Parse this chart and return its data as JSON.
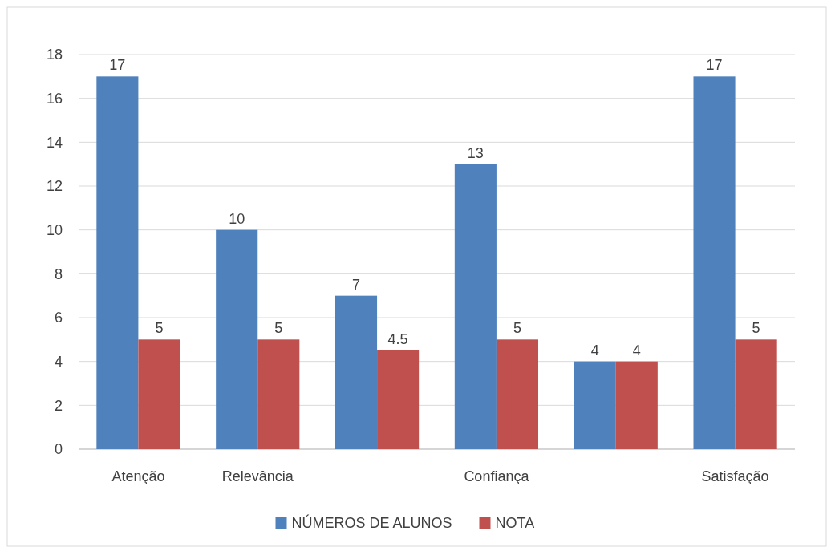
{
  "chart_data": {
    "type": "bar",
    "categories": [
      "Atenção",
      "Relevância",
      null,
      "Confiança",
      null,
      "Satisfação"
    ],
    "series": [
      {
        "name": "NÚMEROS DE ALUNOS",
        "color": "#4f81bd",
        "values": [
          17,
          10,
          7,
          13,
          4,
          17
        ]
      },
      {
        "name": "NOTA",
        "color": "#c0504d",
        "values": [
          5,
          5,
          4.5,
          5,
          4,
          5
        ]
      }
    ],
    "ylim": [
      0,
      18
    ],
    "yticks": [
      0,
      2,
      4,
      6,
      8,
      10,
      12,
      14,
      16,
      18
    ],
    "grid": "y",
    "legend": "bottom",
    "data_labels": true
  }
}
